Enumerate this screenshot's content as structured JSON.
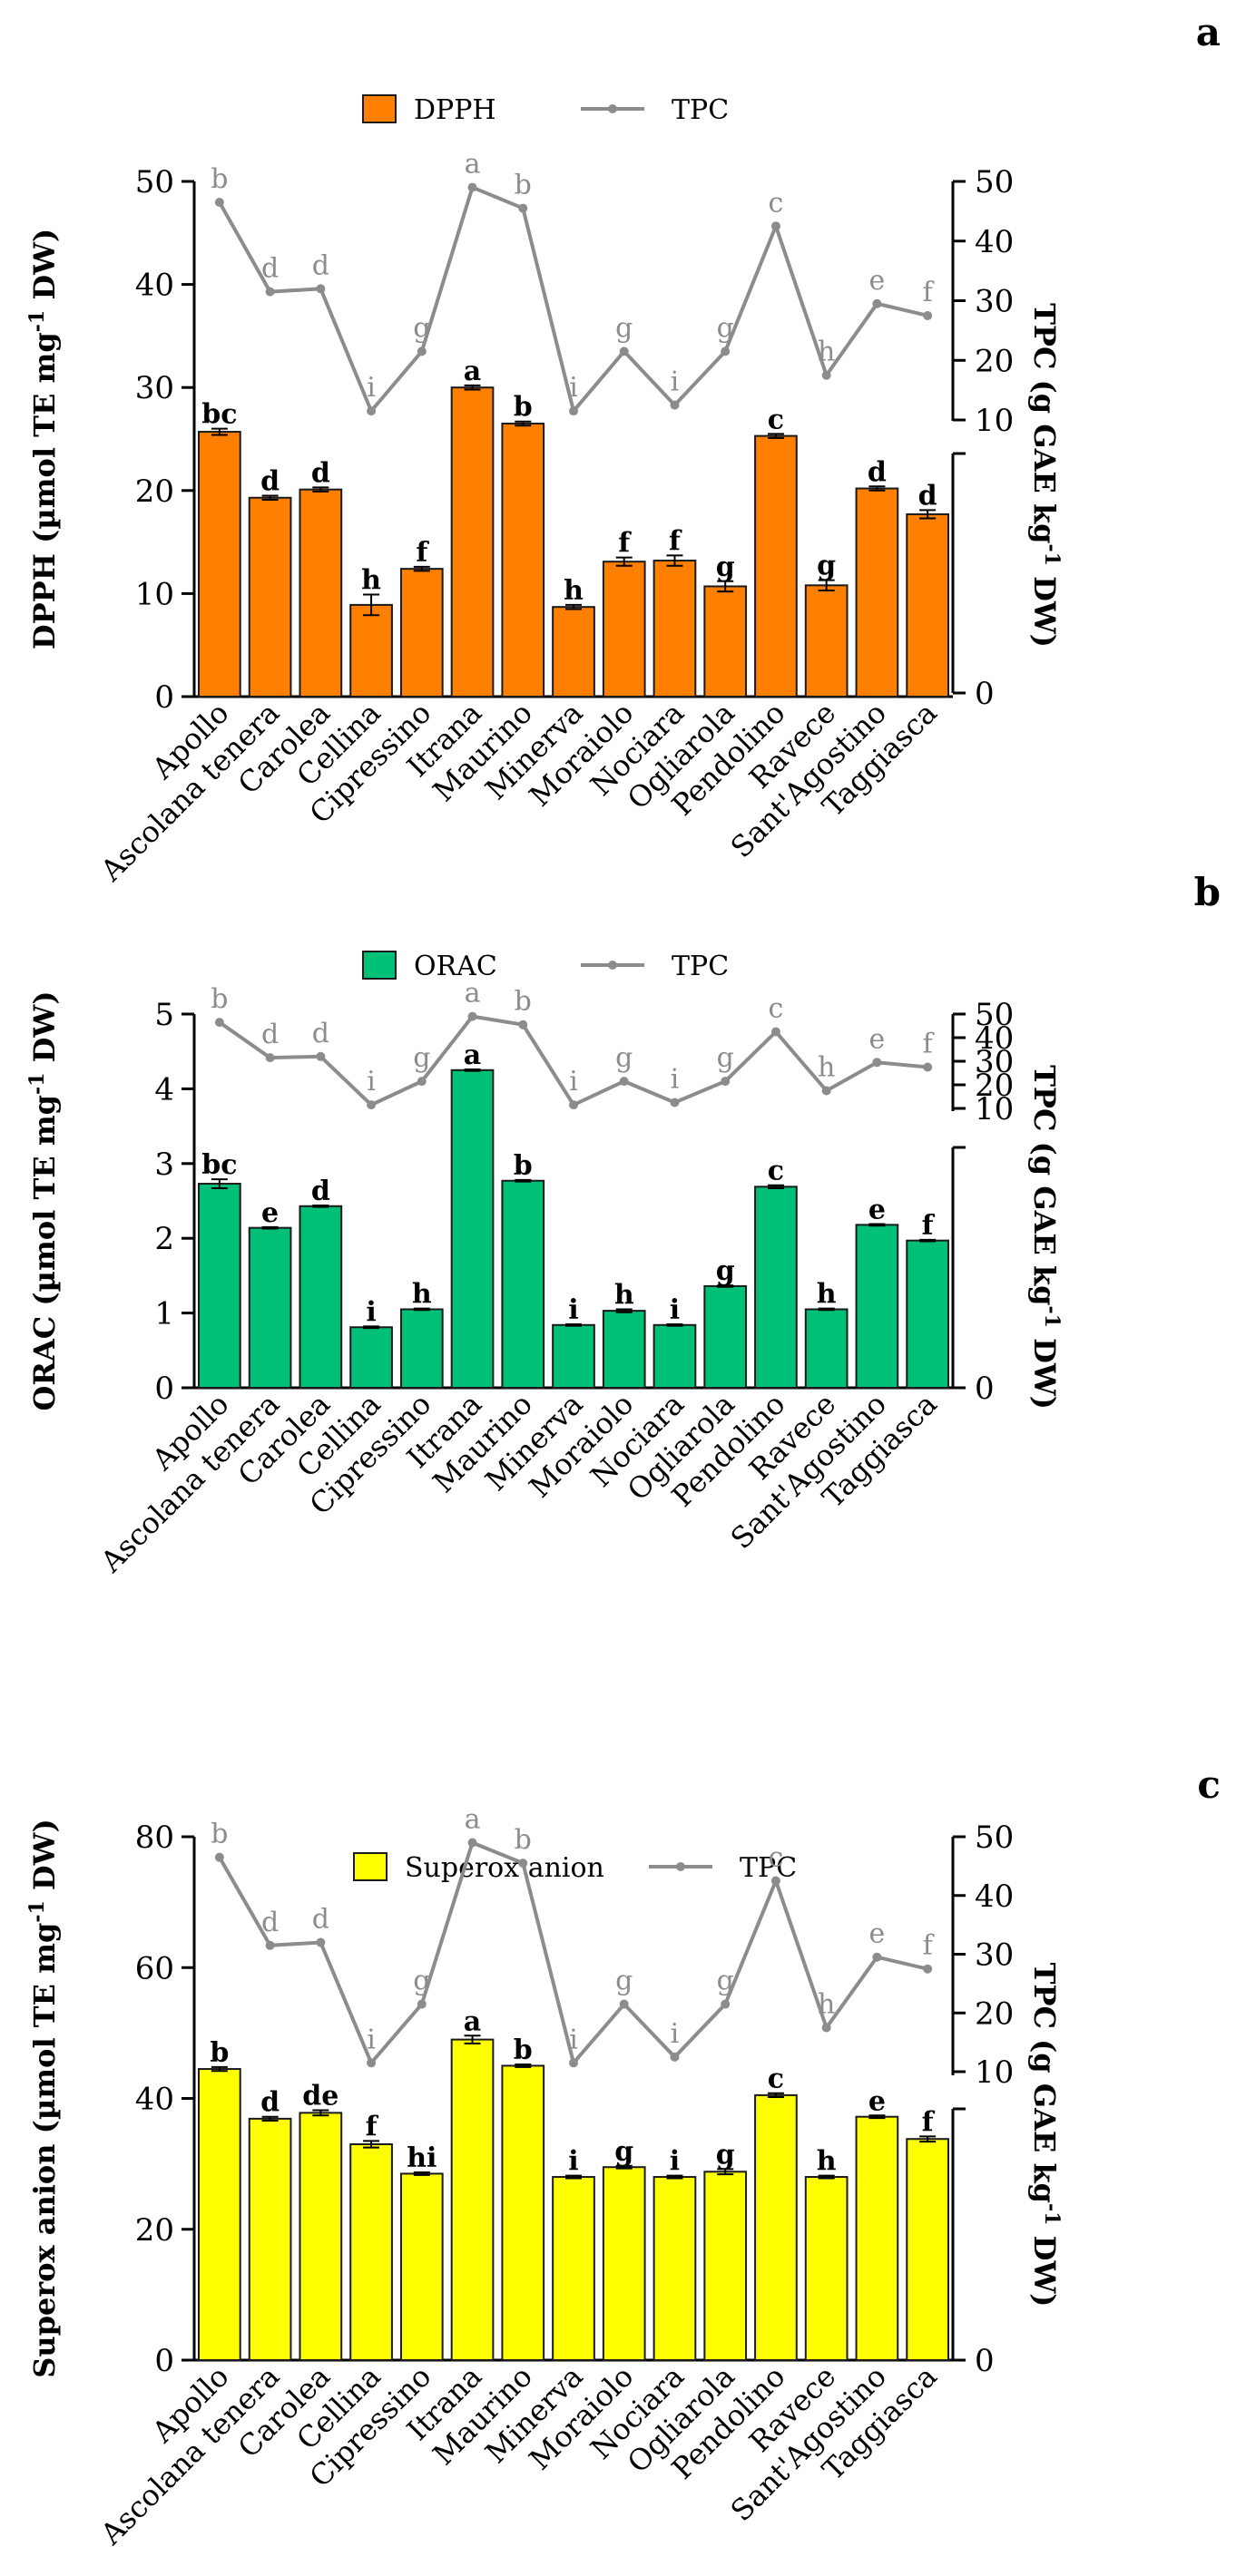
{
  "colors": {
    "axis": "#000000",
    "tpc_line": "#8c8c8c",
    "tpc_letter": "#8c8c8c",
    "bar_stroke": "#1a1a1a"
  },
  "chart_data": [
    {
      "type": "bar",
      "panel_label": "a",
      "title": "",
      "categories": [
        "Apollo",
        "Ascolana tenera",
        "Carolea",
        "Cellina",
        "Cipressino",
        "Itrana",
        "Maurino",
        "Minerva",
        "Moraiolo",
        "Nociara",
        "Ogliarola",
        "Pendolino",
        "Ravece",
        "Sant'Agostino",
        "Taggiasca"
      ],
      "bar_color": "#ff7f00",
      "series": [
        {
          "name": "DPPH",
          "kind": "bar",
          "axis": "left",
          "values": [
            25.7,
            19.3,
            20.1,
            8.9,
            12.4,
            30.0,
            26.5,
            8.7,
            13.1,
            13.2,
            10.7,
            25.3,
            10.8,
            20.2,
            17.7
          ],
          "errors": [
            0.3,
            0.2,
            0.2,
            1.0,
            0.2,
            0.2,
            0.2,
            0.2,
            0.4,
            0.5,
            0.5,
            0.2,
            0.5,
            0.2,
            0.4
          ],
          "letters": [
            "bc",
            "d",
            "d",
            "h",
            "f",
            "a",
            "b",
            "h",
            "f",
            "f",
            "g",
            "c",
            "g",
            "d",
            "d"
          ]
        },
        {
          "name": "TPC",
          "kind": "line",
          "axis": "right",
          "values": [
            46.5,
            31.5,
            32.0,
            11.5,
            21.5,
            49.0,
            45.5,
            11.5,
            21.5,
            12.5,
            21.5,
            42.5,
            17.5,
            29.5,
            27.5
          ],
          "letters": [
            "b",
            "d",
            "d",
            "i",
            "g",
            "a",
            "b",
            "i",
            "g",
            "i",
            "g",
            "c",
            "h",
            "e",
            "f"
          ]
        }
      ],
      "left_axis": {
        "label": "DPPH (µmol TE mg",
        "sup": "-1",
        "label_end": " DW)",
        "range": [
          0,
          50
        ],
        "ticks": [
          "0",
          "10",
          "20",
          "30",
          "40",
          "50"
        ]
      },
      "right_axis": {
        "label": "TPC (g GAE kg",
        "sup": "-1",
        "label_end": " DW)",
        "range": [
          10,
          50
        ],
        "ticks": [
          "0",
          "10",
          "20",
          "30",
          "40",
          "50"
        ]
      },
      "legend": {
        "position": "top-center",
        "items": [
          "DPPH",
          "TPC"
        ]
      }
    },
    {
      "type": "bar",
      "panel_label": "b",
      "title": "",
      "categories": [
        "Apollo",
        "Ascolana tenera",
        "Carolea",
        "Cellina",
        "Cipressino",
        "Itrana",
        "Maurino",
        "Minerva",
        "Moraiolo",
        "Nociara",
        "Ogliarola",
        "Pendolino",
        "Ravece",
        "Sant'Agostino",
        "Taggiasca"
      ],
      "bar_color": "#00c078",
      "series": [
        {
          "name": "ORAC",
          "kind": "bar",
          "axis": "left",
          "values": [
            2.73,
            2.14,
            2.43,
            0.81,
            1.05,
            4.25,
            2.77,
            0.84,
            1.03,
            0.84,
            1.36,
            2.69,
            1.05,
            2.18,
            1.97
          ],
          "errors": [
            0.06,
            0.01,
            0.01,
            0.01,
            0.01,
            0.01,
            0.01,
            0.01,
            0.02,
            0.01,
            0.01,
            0.02,
            0.01,
            0.01,
            0.01
          ],
          "letters": [
            "bc",
            "e",
            "d",
            "i",
            "h",
            "a",
            "b",
            "i",
            "h",
            "i",
            "g",
            "c",
            "h",
            "e",
            "f"
          ]
        },
        {
          "name": "TPC",
          "kind": "line",
          "axis": "right",
          "values": [
            46.5,
            31.5,
            32.0,
            11.5,
            21.5,
            49.0,
            45.5,
            11.5,
            21.5,
            12.5,
            21.5,
            42.5,
            17.5,
            29.5,
            27.5
          ],
          "letters": [
            "b",
            "d",
            "d",
            "i",
            "g",
            "a",
            "b",
            "i",
            "g",
            "i",
            "g",
            "c",
            "h",
            "e",
            "f"
          ]
        }
      ],
      "left_axis": {
        "label": "ORAC (µmol TE mg",
        "sup": "-1",
        "label_end": " DW)",
        "range": [
          0,
          5
        ],
        "ticks": [
          "0",
          "1",
          "2",
          "3",
          "4",
          "5"
        ]
      },
      "right_axis": {
        "label": "TPC (g GAE kg",
        "sup": "-1",
        "label_end": " DW)",
        "range": [
          10,
          50
        ],
        "ticks": [
          "0",
          "10",
          "20",
          "30",
          "40",
          "50"
        ]
      },
      "legend": {
        "position": "top-center",
        "items": [
          "ORAC",
          "TPC"
        ]
      }
    },
    {
      "type": "bar",
      "panel_label": "c",
      "title": "",
      "categories": [
        "Apollo",
        "Ascolana tenera",
        "Carolea",
        "Cellina",
        "Cipressino",
        "Itrana",
        "Maurino",
        "Minerva",
        "Moraiolo",
        "Nociara",
        "Ogliarola",
        "Pendolino",
        "Ravece",
        "Sant'Agostino",
        "Taggiasca"
      ],
      "bar_color": "#ffff00",
      "series": [
        {
          "name": "Superox anion",
          "kind": "bar",
          "axis": "left",
          "values": [
            44.5,
            36.9,
            37.8,
            33.0,
            28.5,
            49.0,
            45.0,
            28.0,
            29.5,
            28.0,
            28.8,
            40.5,
            28.0,
            37.2,
            33.8
          ],
          "errors": [
            0.3,
            0.3,
            0.4,
            0.5,
            0.2,
            0.6,
            0.2,
            0.2,
            0.2,
            0.2,
            0.4,
            0.3,
            0.2,
            0.2,
            0.4
          ],
          "letters": [
            "b",
            "d",
            "de",
            "f",
            "hi",
            "a",
            "b",
            "i",
            "g",
            "i",
            "g",
            "c",
            "h",
            "e",
            "f"
          ]
        },
        {
          "name": "TPC",
          "kind": "line",
          "axis": "right",
          "values": [
            46.5,
            31.5,
            32.0,
            11.5,
            21.5,
            49.0,
            45.5,
            11.5,
            21.5,
            12.5,
            21.5,
            42.5,
            17.5,
            29.5,
            27.5
          ],
          "letters": [
            "b",
            "d",
            "d",
            "i",
            "g",
            "a",
            "b",
            "i",
            "g",
            "i",
            "g",
            "c",
            "h",
            "e",
            "f"
          ]
        }
      ],
      "left_axis": {
        "label": "Superox anion (µmol TE mg",
        "sup": "-1",
        "label_end": " DW)",
        "range": [
          0,
          80
        ],
        "ticks": [
          "0",
          "20",
          "40",
          "60",
          "80"
        ]
      },
      "right_axis": {
        "label": "TPC (g GAE kg",
        "sup": "-1",
        "label_end": " DW)",
        "range": [
          10,
          50
        ],
        "ticks": [
          "0",
          "10",
          "20",
          "30",
          "40",
          "50"
        ]
      },
      "legend": {
        "position": "top-center",
        "items": [
          "Superox anion",
          "TPC"
        ]
      }
    }
  ]
}
